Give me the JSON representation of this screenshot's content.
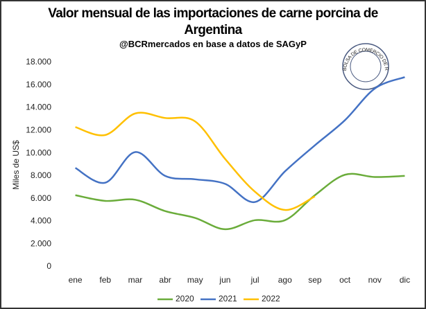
{
  "chart_data": {
    "type": "line",
    "title": "Valor mensual de las importaciones de carne porcina de Argentina",
    "subtitle": "@BCRmercados en base a datos de SAGyP",
    "y_label": "Miles de US$",
    "logo_text": "BOLSA DE COMERCIO DE ROSARIO",
    "categories": [
      "ene",
      "feb",
      "mar",
      "abr",
      "may",
      "jun",
      "jul",
      "ago",
      "sep",
      "oct",
      "nov",
      "dic"
    ],
    "series": [
      {
        "name": "2020",
        "color": "#6aac3a",
        "values": [
          6300,
          5800,
          5900,
          4900,
          4300,
          3300,
          4100,
          4100,
          6300,
          8100,
          7900,
          8000
        ]
      },
      {
        "name": "2021",
        "color": "#4472c4",
        "values": [
          8700,
          7400,
          10100,
          8000,
          7700,
          7300,
          5700,
          8400,
          10700,
          12900,
          15700,
          16700
        ]
      },
      {
        "name": "2022",
        "color": "#ffc000",
        "values": [
          12300,
          11600,
          13500,
          13100,
          12800,
          9500,
          6600,
          5000,
          6200,
          null,
          null,
          null
        ]
      }
    ],
    "ylim": [
      0,
      18000
    ],
    "yticks": [
      0,
      {
        "value": 2000,
        "label": "2.000"
      },
      {
        "value": 4000,
        "label": "4.000"
      },
      {
        "value": 6000,
        "label": "6.000"
      },
      {
        "value": 8000,
        "label": "8.000"
      },
      {
        "value": 10000,
        "label": "10.000"
      },
      {
        "value": 12000,
        "label": "12.000"
      },
      {
        "value": 14000,
        "label": "14.000"
      },
      {
        "value": 16000,
        "label": "16.000"
      },
      {
        "value": 18000,
        "label": "18.000"
      }
    ],
    "grid": false,
    "legend": "bottom"
  }
}
